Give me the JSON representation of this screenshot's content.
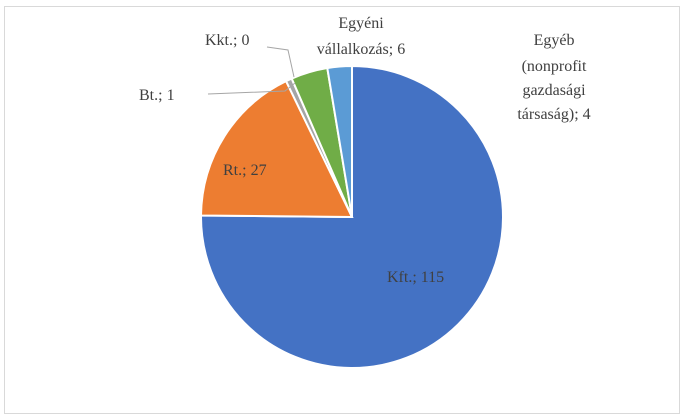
{
  "chart_data": {
    "type": "pie",
    "categories": [
      "Kft.",
      "Rt.",
      "Bt.",
      "Kkt.",
      "Egyéb (nonprofit gazdasági társaság)",
      "Egyéni vállalkozás"
    ],
    "values": [
      115,
      27,
      1,
      0,
      4,
      6
    ],
    "labels": [
      "Kft.; 115",
      "Rt.; 27",
      "Bt.; 1",
      "Kkt.; 0",
      "Egyéb (nonprofit gazdasági társaság); 4",
      "Egyéni vállalkozás; 6"
    ],
    "colors": [
      "#4472c4",
      "#ed7d31",
      "#a5a5a5",
      "#ffc000",
      "#5b9bd5",
      "#70ad47"
    ],
    "legend": "none"
  },
  "labels": {
    "kft": "Kft.; 115",
    "rt": "Rt.; 27",
    "bt": "Bt.; 1",
    "kkt": "Kkt.; 0",
    "egyeni_1": "Egyéni",
    "egyeni_2": "vállalkozás; 6",
    "egyeb_1": "Egyéb",
    "egyeb_2": "(nonprofit",
    "egyeb_3": "gazdasági",
    "egyeb_4": "társaság); 4"
  }
}
